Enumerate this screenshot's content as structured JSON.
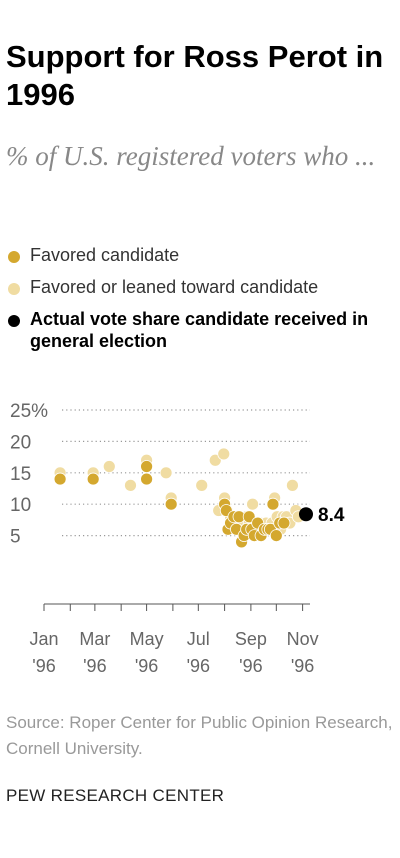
{
  "title": "Support for Ross Perot in 1996",
  "subtitle": "% of U.S. registered voters who ...",
  "legend": [
    {
      "label": "Favored candidate",
      "color": "#d4a82f"
    },
    {
      "label": "Favored or leaned toward candidate",
      "color": "#f0dca2"
    },
    {
      "label": "Actual vote share candidate received in general election",
      "color": "#000000"
    }
  ],
  "source": "Source: Roper Center for Public Opinion Research, Cornell University.",
  "org": "PEW RESEARCH CENTER",
  "chart_data": {
    "type": "scatter",
    "x_axis": {
      "type": "date",
      "range": [
        "1996-01-01",
        "1996-11-05"
      ],
      "grid": false
    },
    "y_axis": {
      "range": [
        0,
        25
      ],
      "ticks": [
        5,
        10,
        15,
        20,
        25
      ],
      "tick_labels": [
        "5",
        "10",
        "15",
        "20",
        "25%"
      ],
      "grid": true
    },
    "x_ticks": [
      {
        "date": "1996-01-01",
        "line1": "Jan",
        "line2": "'96"
      },
      {
        "date": "1996-03-01",
        "line1": "Mar",
        "line2": "'96"
      },
      {
        "date": "1996-05-01",
        "line1": "May",
        "line2": "'96"
      },
      {
        "date": "1996-07-01",
        "line1": "Jul",
        "line2": "'96"
      },
      {
        "date": "1996-09-01",
        "line1": "Sep",
        "line2": "'96"
      },
      {
        "date": "1996-11-01",
        "line1": "Nov",
        "line2": "'96"
      }
    ],
    "series": [
      {
        "name": "Favored or leaned toward candidate",
        "color": "#f0dca2",
        "points": [
          [
            "1996-01-20",
            15
          ],
          [
            "1996-02-28",
            15
          ],
          [
            "1996-03-18",
            16
          ],
          [
            "1996-04-12",
            13
          ],
          [
            "1996-05-01",
            17
          ],
          [
            "1996-05-24",
            15
          ],
          [
            "1996-05-30",
            11
          ],
          [
            "1996-07-05",
            13
          ],
          [
            "1996-07-21",
            17
          ],
          [
            "1996-07-31",
            18
          ],
          [
            "1996-08-01",
            11
          ],
          [
            "1996-07-25",
            9
          ],
          [
            "1996-08-04",
            9
          ],
          [
            "1996-08-08",
            8
          ],
          [
            "1996-08-12",
            7
          ],
          [
            "1996-08-16",
            8
          ],
          [
            "1996-08-20",
            6
          ],
          [
            "1996-08-24",
            7
          ],
          [
            "1996-08-27",
            8
          ],
          [
            "1996-08-30",
            7
          ],
          [
            "1996-09-03",
            10
          ],
          [
            "1996-09-06",
            7
          ],
          [
            "1996-09-09",
            6
          ],
          [
            "1996-09-12",
            7
          ],
          [
            "1996-09-16",
            6
          ],
          [
            "1996-09-19",
            7
          ],
          [
            "1996-09-23",
            6
          ],
          [
            "1996-09-26",
            7
          ],
          [
            "1996-09-29",
            11
          ],
          [
            "1996-10-02",
            8
          ],
          [
            "1996-10-06",
            6
          ],
          [
            "1996-10-09",
            8
          ],
          [
            "1996-10-13",
            8
          ],
          [
            "1996-10-17",
            7
          ],
          [
            "1996-10-20",
            13
          ],
          [
            "1996-10-24",
            9
          ],
          [
            "1996-10-27",
            8
          ]
        ]
      },
      {
        "name": "Favored candidate",
        "color": "#d4a82f",
        "points": [
          [
            "1996-01-20",
            14
          ],
          [
            "1996-02-28",
            14
          ],
          [
            "1996-05-01",
            16
          ],
          [
            "1996-05-01",
            14
          ],
          [
            "1996-05-30",
            10
          ],
          [
            "1996-08-01",
            10
          ],
          [
            "1996-08-03",
            9
          ],
          [
            "1996-08-05",
            6
          ],
          [
            "1996-08-08",
            7
          ],
          [
            "1996-08-12",
            8
          ],
          [
            "1996-08-15",
            6
          ],
          [
            "1996-08-18",
            8
          ],
          [
            "1996-08-21",
            4
          ],
          [
            "1996-08-24",
            5
          ],
          [
            "1996-08-27",
            6
          ],
          [
            "1996-08-30",
            8
          ],
          [
            "1996-09-02",
            6
          ],
          [
            "1996-09-05",
            5
          ],
          [
            "1996-09-09",
            7
          ],
          [
            "1996-09-13",
            5
          ],
          [
            "1996-09-17",
            6
          ],
          [
            "1996-09-21",
            6
          ],
          [
            "1996-09-24",
            6
          ],
          [
            "1996-09-27",
            10
          ],
          [
            "1996-10-01",
            5
          ],
          [
            "1996-10-05",
            7
          ],
          [
            "1996-10-10",
            7
          ]
        ]
      },
      {
        "name": "Actual vote share candidate received in general election",
        "color": "#000000",
        "points": [
          [
            "1996-11-05",
            8.4
          ]
        ],
        "label": "8.4"
      }
    ]
  }
}
